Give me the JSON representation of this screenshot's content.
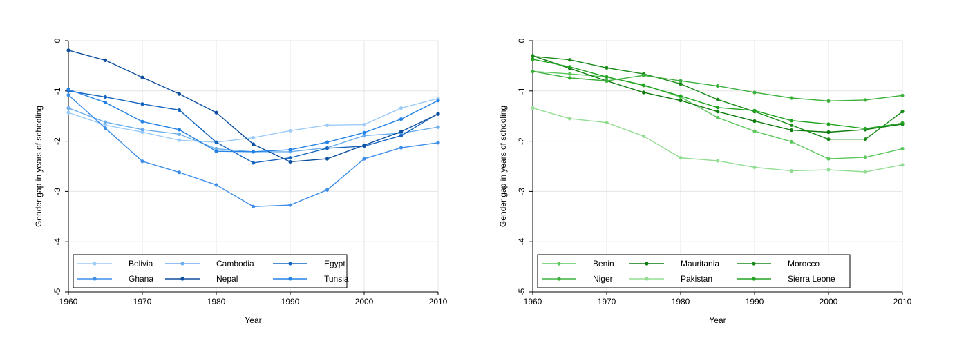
{
  "chart_data": [
    {
      "type": "line",
      "xlabel": "Year",
      "ylabel": "Gender gap in years of schooling",
      "xlim": [
        1960,
        2010
      ],
      "ylim": [
        -5,
        0
      ],
      "x_ticks": [
        1960,
        1970,
        1980,
        1990,
        2000,
        2010
      ],
      "y_ticks": [
        0,
        -1,
        -2,
        -3,
        -4,
        -5
      ],
      "grid": true,
      "legend_position": "bottom-inside",
      "x": [
        1960,
        1965,
        1970,
        1975,
        1980,
        1985,
        1990,
        1995,
        2000,
        2005,
        2010
      ],
      "series": [
        {
          "name": "Bolivia",
          "color": "#9ccbf7",
          "values": [
            -1.43,
            -1.68,
            -1.82,
            -1.98,
            -2.02,
            -1.93,
            -1.79,
            -1.68,
            -1.67,
            -1.34,
            -1.15
          ]
        },
        {
          "name": "Cambodia",
          "color": "#6aaeee",
          "values": [
            -1.34,
            -1.62,
            -1.77,
            -1.86,
            -2.15,
            -2.21,
            -2.21,
            -2.13,
            -1.89,
            -1.84,
            -1.72
          ]
        },
        {
          "name": "Egypt",
          "color": "#1565c0",
          "values": [
            -1.0,
            -1.12,
            -1.26,
            -1.38,
            -2.02,
            -2.43,
            -2.33,
            -2.14,
            -2.1,
            -1.89,
            -1.45
          ]
        },
        {
          "name": "Ghana",
          "color": "#3e8ee8",
          "values": [
            -1.08,
            -1.74,
            -2.4,
            -2.62,
            -2.87,
            -3.3,
            -3.27,
            -2.97,
            -2.35,
            -2.13,
            -2.03
          ]
        },
        {
          "name": "Nepal",
          "color": "#0d4f9e",
          "values": [
            -0.19,
            -0.39,
            -0.73,
            -1.06,
            -1.43,
            -2.06,
            -2.41,
            -2.35,
            -2.08,
            -1.81,
            -1.46
          ]
        },
        {
          "name": "Tunsia",
          "color": "#2382e6",
          "values": [
            -0.97,
            -1.23,
            -1.61,
            -1.77,
            -2.2,
            -2.21,
            -2.17,
            -2.02,
            -1.83,
            -1.56,
            -1.19
          ]
        }
      ]
    },
    {
      "type": "line",
      "xlabel": "Year",
      "ylabel": "Gender gap in years of schooling",
      "xlim": [
        1960,
        2010
      ],
      "ylim": [
        -5,
        0
      ],
      "x_ticks": [
        1960,
        1970,
        1980,
        1990,
        2000,
        2010
      ],
      "y_ticks": [
        0,
        -1,
        -2,
        -3,
        -4,
        -5
      ],
      "grid": true,
      "legend_position": "bottom-inside",
      "x": [
        1960,
        1965,
        1970,
        1975,
        1980,
        1985,
        1990,
        1995,
        2000,
        2005,
        2010
      ],
      "series": [
        {
          "name": "Benin",
          "color": "#5cc85c",
          "values": [
            -0.61,
            -0.66,
            -0.72,
            -0.88,
            -1.12,
            -1.53,
            -1.8,
            -2.01,
            -2.35,
            -2.32,
            -2.15
          ]
        },
        {
          "name": "Mauritania",
          "color": "#0c7a0c",
          "values": [
            -0.3,
            -0.55,
            -0.8,
            -1.03,
            -1.19,
            -1.41,
            -1.6,
            -1.78,
            -1.82,
            -1.77,
            -1.66
          ]
        },
        {
          "name": "Morocco",
          "color": "#1a8a1a",
          "values": [
            -0.31,
            -0.38,
            -0.54,
            -0.66,
            -0.86,
            -1.17,
            -1.41,
            -1.68,
            -1.96,
            -1.96,
            -1.41
          ]
        },
        {
          "name": "Niger",
          "color": "#3cb03c",
          "values": [
            -0.61,
            -0.74,
            -0.8,
            -0.69,
            -0.8,
            -0.9,
            -1.03,
            -1.14,
            -1.2,
            -1.18,
            -1.09
          ]
        },
        {
          "name": "Pakistan",
          "color": "#93dd93",
          "values": [
            -1.34,
            -1.55,
            -1.63,
            -1.9,
            -2.33,
            -2.39,
            -2.52,
            -2.59,
            -2.57,
            -2.61,
            -2.47
          ]
        },
        {
          "name": "Sierra Leone",
          "color": "#22a322",
          "values": [
            -0.37,
            -0.52,
            -0.72,
            -0.89,
            -1.1,
            -1.33,
            -1.39,
            -1.59,
            -1.66,
            -1.75,
            -1.64
          ]
        }
      ]
    }
  ]
}
